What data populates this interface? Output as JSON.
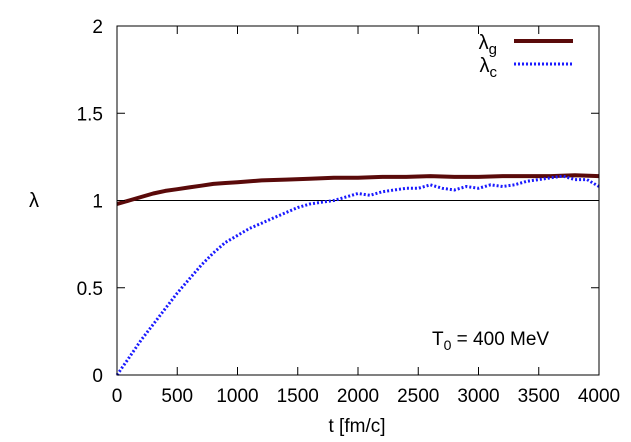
{
  "chart_data": {
    "type": "line",
    "xlabel": "t [fm/c]",
    "ylabel": "λ",
    "xlim": [
      0,
      4000
    ],
    "ylim": [
      0,
      2
    ],
    "x_ticks": [
      0,
      500,
      1000,
      1500,
      2000,
      2500,
      3000,
      3500,
      4000
    ],
    "y_ticks": [
      0,
      0.5,
      1,
      1.5,
      2
    ],
    "x_tick_labels": [
      "0",
      "500",
      "1000",
      "1500",
      "2000",
      "2500",
      "3000",
      "3500",
      "4000"
    ],
    "y_tick_labels": [
      "0",
      "0.5",
      "1",
      "1.5",
      "2"
    ],
    "grid": false,
    "legend_position": "top-right",
    "annotation": {
      "main": "T",
      "sub": "0",
      "rest": " = 400 MeV"
    },
    "reference_line": {
      "y": 1,
      "color": "#000000"
    },
    "series": [
      {
        "name": "λg",
        "legend": {
          "main": "λ",
          "sub": "g"
        },
        "color": "#5a0a0a",
        "style": "solid",
        "x": [
          0,
          100,
          200,
          300,
          400,
          500,
          600,
          700,
          800,
          900,
          1000,
          1200,
          1400,
          1600,
          1800,
          2000,
          2200,
          2400,
          2600,
          2800,
          3000,
          3200,
          3400,
          3600,
          3800,
          4000
        ],
        "y": [
          0.98,
          1.0,
          1.02,
          1.04,
          1.055,
          1.065,
          1.075,
          1.085,
          1.095,
          1.1,
          1.105,
          1.115,
          1.12,
          1.125,
          1.13,
          1.13,
          1.135,
          1.135,
          1.14,
          1.135,
          1.135,
          1.14,
          1.14,
          1.14,
          1.145,
          1.14
        ]
      },
      {
        "name": "λc",
        "legend": {
          "main": "λ",
          "sub": "c"
        },
        "color": "#1a1aff",
        "style": "dotted",
        "x": [
          0,
          100,
          200,
          300,
          400,
          500,
          600,
          700,
          800,
          900,
          1000,
          1100,
          1200,
          1300,
          1400,
          1500,
          1600,
          1700,
          1800,
          1900,
          2000,
          2100,
          2200,
          2300,
          2400,
          2500,
          2600,
          2700,
          2800,
          2900,
          3000,
          3100,
          3200,
          3300,
          3400,
          3500,
          3600,
          3700,
          3800,
          3900,
          4000
        ],
        "y": [
          0.0,
          0.1,
          0.2,
          0.29,
          0.38,
          0.47,
          0.55,
          0.63,
          0.7,
          0.76,
          0.8,
          0.84,
          0.87,
          0.9,
          0.93,
          0.96,
          0.98,
          0.99,
          1.0,
          1.02,
          1.04,
          1.03,
          1.05,
          1.06,
          1.07,
          1.07,
          1.09,
          1.07,
          1.06,
          1.08,
          1.07,
          1.09,
          1.08,
          1.09,
          1.11,
          1.12,
          1.13,
          1.14,
          1.12,
          1.12,
          1.08
        ]
      }
    ]
  }
}
